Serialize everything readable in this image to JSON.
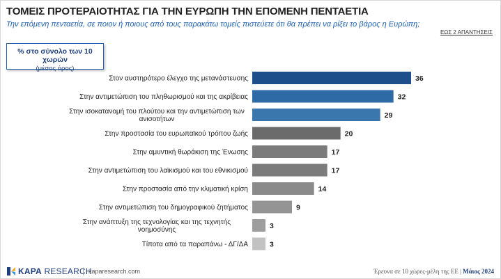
{
  "header": {
    "title": "ΤΟΜΕΙΣ ΠΡΟΤΕΡΑΙΟΤΗΤΑΣ ΓΙΑ ΤΗΝ ΕΥΡΩΠΗ ΤΗΝ ΕΠΟΜΕΝΗ ΠΕΝΤΑΕΤΙΑ",
    "subtitle": "Την επόμενη πενταετία, σε ποιον ή ποιους από τους παρακάτω τομείς πιστεύετε ότι θα πρέπει να ρίξει το βάρος η Ευρώπη;",
    "responses_note": "ΕΩΣ 2 ΑΠΑΝΤΗΣΕΙΣ"
  },
  "legend": {
    "main": "% στο σύνολο των 10 χωρών",
    "sub": "(μέσος όρος)"
  },
  "chart_data": {
    "type": "bar",
    "orientation": "horizontal",
    "categories": [
      [
        "Στον αυστηρότερο έλεγχο της μετανάστευσης"
      ],
      [
        "Στην αντιμετώπιση του πληθωρισμού και της ακρίβειας"
      ],
      [
        "Στην ισοκατανομή του πλούτου και την αντιμετώπιση των",
        "ανισοτήτων"
      ],
      [
        "Στην προστασία του ευρωπαϊκού τρόπου ζωής"
      ],
      [
        "Στην αμυντική θωράκιση της Ένωσης"
      ],
      [
        "Στην αντιμετώπιση του λαϊκισμού και του εθνικισμού"
      ],
      [
        "Στην προστασία από την κλιματική κρίση"
      ],
      [
        "Στην αντιμετώπιση του δημογραφικού ζητήματος"
      ],
      [
        "Στην ανάπτυξη της τεχνολογίας και της τεχνητής",
        "νοημοσύνης"
      ],
      [
        "Τίποτα από τα παραπάνω - ΔΓ/ΔΑ"
      ]
    ],
    "values": [
      36,
      32,
      29,
      20,
      17,
      17,
      14,
      9,
      3,
      3
    ],
    "colors": [
      "#1f4f8a",
      "#2e6aa6",
      "#3a77ad",
      "#6b6b6b",
      "#7b7b7b",
      "#7b7b7b",
      "#8a8a8a",
      "#949494",
      "#9e9e9e",
      "#c2c2c2"
    ],
    "xlim": [
      0,
      40
    ],
    "grid": false
  },
  "footer": {
    "brand_bold": "KAPA",
    "brand_rest": " RESEARCH",
    "separator": "|",
    "site": "kaparesearch.com",
    "source_text": "Έρευνα σε 10 χώρες-μέλη της ΕΕ | ",
    "source_date": "Μάιος 2024"
  }
}
